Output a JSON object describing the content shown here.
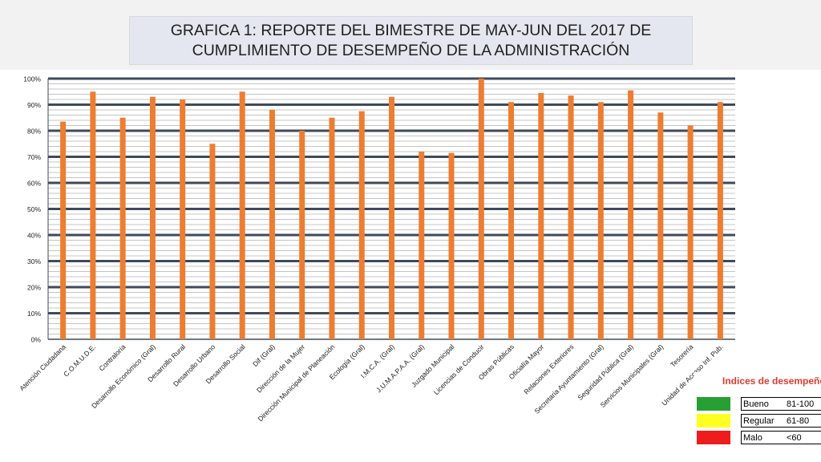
{
  "title_lines": [
    "GRAFICA 1: REPORTE DEL BIMESTRE DE MAY-JUN DEL 2017 DE",
    "CUMPLIMIENTO DE DESEMPEÑO DE LA ADMINISTRACIÓN"
  ],
  "legend": {
    "title": "Indices de desempeño",
    "items": [
      {
        "label": "Bueno",
        "range": "81-100",
        "color": "#27a033"
      },
      {
        "label": "Regular",
        "range": "61-80",
        "color": "#ffff22"
      },
      {
        "label": "Malo",
        "range": "<60",
        "color": "#ee1c1c"
      }
    ]
  },
  "chart_data": {
    "type": "bar",
    "categories": [
      "Atención Ciudadana",
      "C.O.M.U.D.E.",
      "Contraloría",
      "Desarrollo Económico (Gral)",
      "Desarrollo Rural",
      "Desarrollo Urbano",
      "Desarrollo Social",
      "Dif (Gral)",
      "Dirección de la Mujer",
      "Dirección Municipal de Planeación",
      "Ecología (Gral)",
      "I.M.C.A. (Gral)",
      "J.U.M.A.P.A.A. (Gral)",
      "Juzgado Municipal",
      "Licencias de Conducir",
      "Obras Públicas",
      "Oficialía Mayor",
      "Relaciones Exteriores",
      "Secretaria Ayuntamiento (Gral)",
      "Seguridad Pública (Gral)",
      "Servicios Municipales (Gral)",
      "Tesorería",
      "Unidad de Acceso Inf. Pub."
    ],
    "values": [
      83.5,
      95,
      85,
      93,
      92,
      75,
      95,
      88,
      80,
      85,
      87.5,
      93,
      72,
      71.5,
      100,
      91,
      94.5,
      93.5,
      91,
      95.5,
      87,
      82,
      91
    ],
    "yticks": [
      "0%",
      "10%",
      "20%",
      "30%",
      "40%",
      "50%",
      "60%",
      "70%",
      "80%",
      "90%",
      "100%"
    ],
    "ylim": [
      0,
      100
    ],
    "bar_color": "#ed7d31",
    "grid": true
  }
}
